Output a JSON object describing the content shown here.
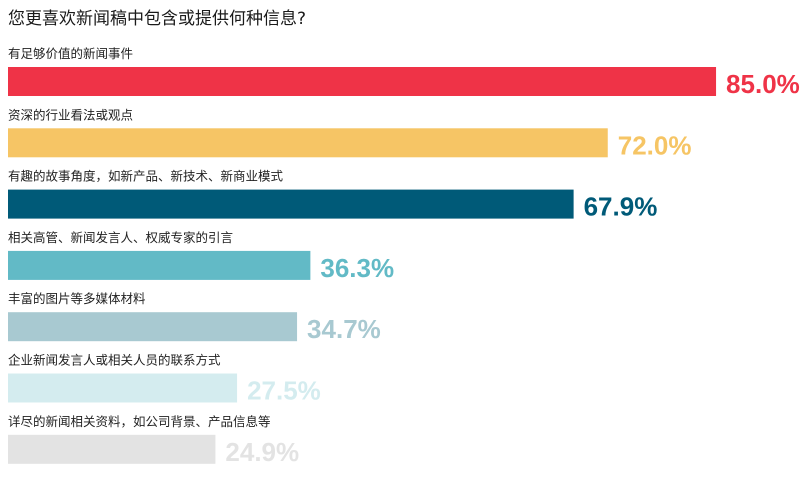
{
  "chart_data": {
    "type": "bar",
    "orientation": "horizontal",
    "title": "您更喜欢新闻稿中包含或提供何种信息?",
    "categories": [
      "有足够价值的新闻事件",
      "资深的行业看法或观点",
      "有趣的故事角度，如新产品、新技术、新商业模式",
      "相关高管、新闻发言人、权威专家的引言",
      "丰富的图片等多媒体材料",
      "企业新闻发言人或相关人员的联系方式",
      "详尽的新闻相关资料，如公司背景、产品信息等"
    ],
    "values": [
      85.0,
      72.0,
      67.9,
      36.3,
      34.7,
      27.5,
      24.9
    ],
    "value_labels": [
      "85.0%",
      "72.0%",
      "67.9%",
      "36.3%",
      "34.7%",
      "27.5%",
      "24.9%"
    ],
    "colors": [
      "#ef3347",
      "#f6c565",
      "#005a78",
      "#62bac6",
      "#a8c9d1",
      "#d4ecef",
      "#e3e3e3"
    ],
    "xlim": [
      0,
      100
    ],
    "grid": false,
    "legend": "none"
  }
}
